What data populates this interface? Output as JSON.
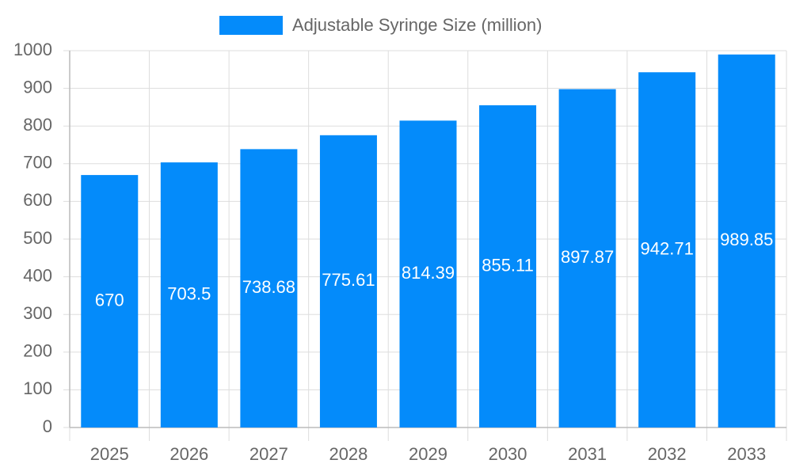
{
  "chart_data": {
    "type": "bar",
    "categories": [
      "2025",
      "2026",
      "2027",
      "2028",
      "2029",
      "2030",
      "2031",
      "2032",
      "2033"
    ],
    "series": [
      {
        "name": "Adjustable Syringe Size (million)",
        "color": "#048bfa",
        "values": [
          670,
          703.5,
          738.68,
          775.61,
          814.39,
          855.11,
          897.87,
          942.71,
          989.85
        ]
      }
    ],
    "ylim": [
      0,
      1000
    ],
    "yticks": [
      0,
      100,
      200,
      300,
      400,
      500,
      600,
      700,
      800,
      900,
      1000
    ],
    "grid": true,
    "legend": "top"
  }
}
